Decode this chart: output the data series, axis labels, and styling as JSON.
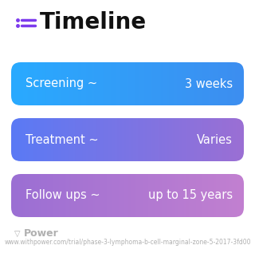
{
  "title": "Timeline",
  "title_fontsize": 20,
  "title_color": "#111111",
  "icon_color": "#7c3aed",
  "background_color": "#ffffff",
  "rows": [
    {
      "label": "Screening ~",
      "value": "3 weeks",
      "color_left": "#29aaff",
      "color_right": "#3d8ef0"
    },
    {
      "label": "Treatment ~",
      "value": "Varies",
      "color_left": "#5a7af5",
      "color_right": "#9b6fd4"
    },
    {
      "label": "Follow ups ~",
      "value": "up to 15 years",
      "color_left": "#9b6fd4",
      "color_right": "#c280d0"
    }
  ],
  "text_fontsize": 10.5,
  "footer_text": "Power",
  "footer_url": "www.withpower.com/trial/phase-3-lymphoma-b-cell-marginal-zone-5-2017-3fd00",
  "footer_fontsize": 5.5
}
